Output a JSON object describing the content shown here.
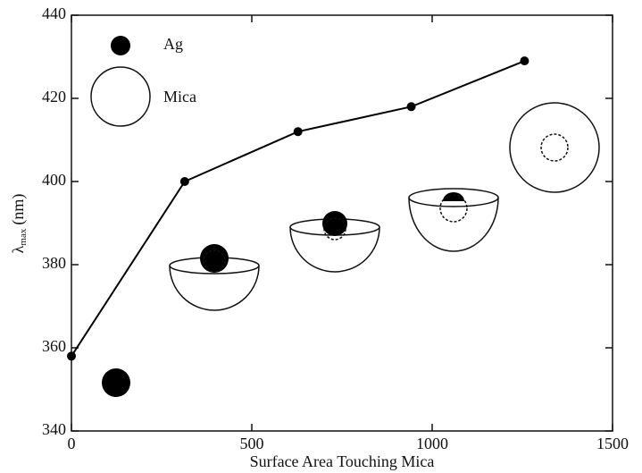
{
  "chart_data": {
    "type": "line",
    "x_label": "Surface Area Touching Mica",
    "y_label": {
      "symbol": "λ",
      "subscript": "max",
      "unit": "(nm)"
    },
    "annotations": [
      "Ag",
      "Mica"
    ],
    "x": [
      0,
      314,
      628,
      942,
      1256
    ],
    "series": [
      {
        "color": "#000000",
        "values": [
          358,
          400,
          412,
          418,
          429
        ]
      }
    ],
    "xlim": [
      0,
      1500
    ],
    "xticks": [
      0,
      500,
      1000,
      1500
    ],
    "ylim": [
      340,
      440
    ],
    "yticks": [
      340,
      360,
      380,
      400,
      420,
      440
    ]
  }
}
